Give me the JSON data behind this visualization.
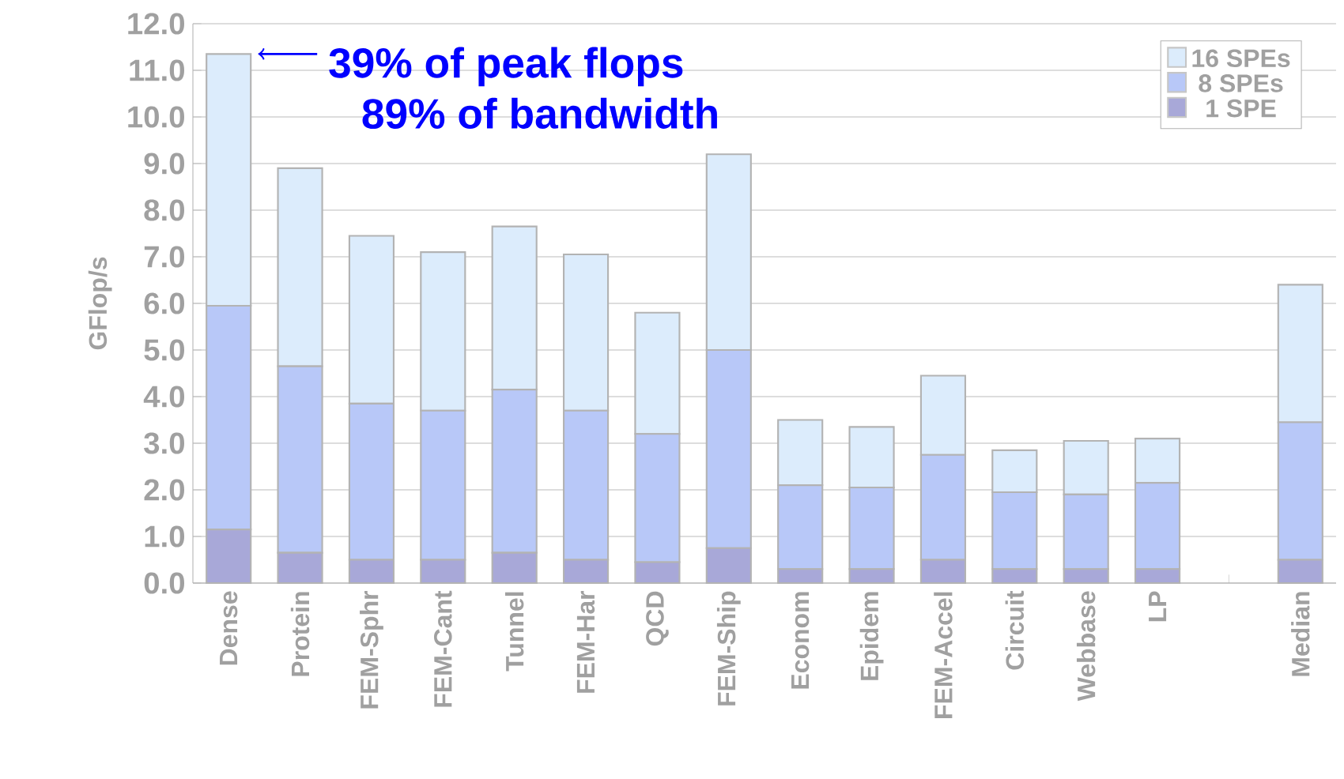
{
  "chart_data": {
    "type": "bar",
    "stacked": true,
    "ylabel": "GFlop/s",
    "categories": [
      "Dense",
      "Protein",
      "FEM-Sphr",
      "FEM-Cant",
      "Tunnel",
      "FEM-Har",
      "QCD",
      "FEM-Ship",
      "Econom",
      "Epidem",
      "FEM-Accel",
      "Circuit",
      "Webbase",
      "LP",
      null,
      "Median"
    ],
    "series": [
      {
        "name": "1 SPE",
        "color": "#a8a8d8",
        "values": [
          1.15,
          0.65,
          0.5,
          0.5,
          0.65,
          0.5,
          0.45,
          0.75,
          0.3,
          0.3,
          0.5,
          0.3,
          0.3,
          0.3,
          null,
          0.5
        ]
      },
      {
        "name": "8 SPEs",
        "color": "#b8c8f8",
        "values": [
          4.8,
          4.0,
          3.35,
          3.2,
          3.5,
          3.2,
          2.75,
          4.25,
          1.8,
          1.75,
          2.25,
          1.65,
          1.6,
          1.85,
          null,
          2.95
        ]
      },
      {
        "name": "16 SPEs",
        "color": "#dcecfc",
        "values": [
          5.4,
          4.25,
          3.6,
          3.4,
          3.5,
          3.35,
          2.6,
          4.2,
          1.4,
          1.3,
          1.7,
          0.9,
          1.15,
          0.95,
          null,
          2.95
        ]
      }
    ],
    "ylim": [
      0,
      12
    ],
    "yticks": [
      {
        "value": 0,
        "label": "0.0"
      },
      {
        "value": 1,
        "label": "1.0"
      },
      {
        "value": 2,
        "label": "2.0"
      },
      {
        "value": 3,
        "label": "3.0"
      },
      {
        "value": 4,
        "label": "4.0"
      },
      {
        "value": 5,
        "label": "5.0"
      },
      {
        "value": 6,
        "label": "6.0"
      },
      {
        "value": 7,
        "label": "7.0"
      },
      {
        "value": 8,
        "label": "8.0"
      },
      {
        "value": 9,
        "label": "9.0"
      },
      {
        "value": 10,
        "label": "10.0"
      },
      {
        "value": 11,
        "label": "11.0"
      },
      {
        "value": 12,
        "label": "12.0"
      }
    ],
    "grid": "y",
    "legend": "top right",
    "annotations": [
      {
        "text": "39% of peak flops",
        "x": "Dense",
        "y": 11.35
      },
      "89% of bandwidth"
    ]
  }
}
